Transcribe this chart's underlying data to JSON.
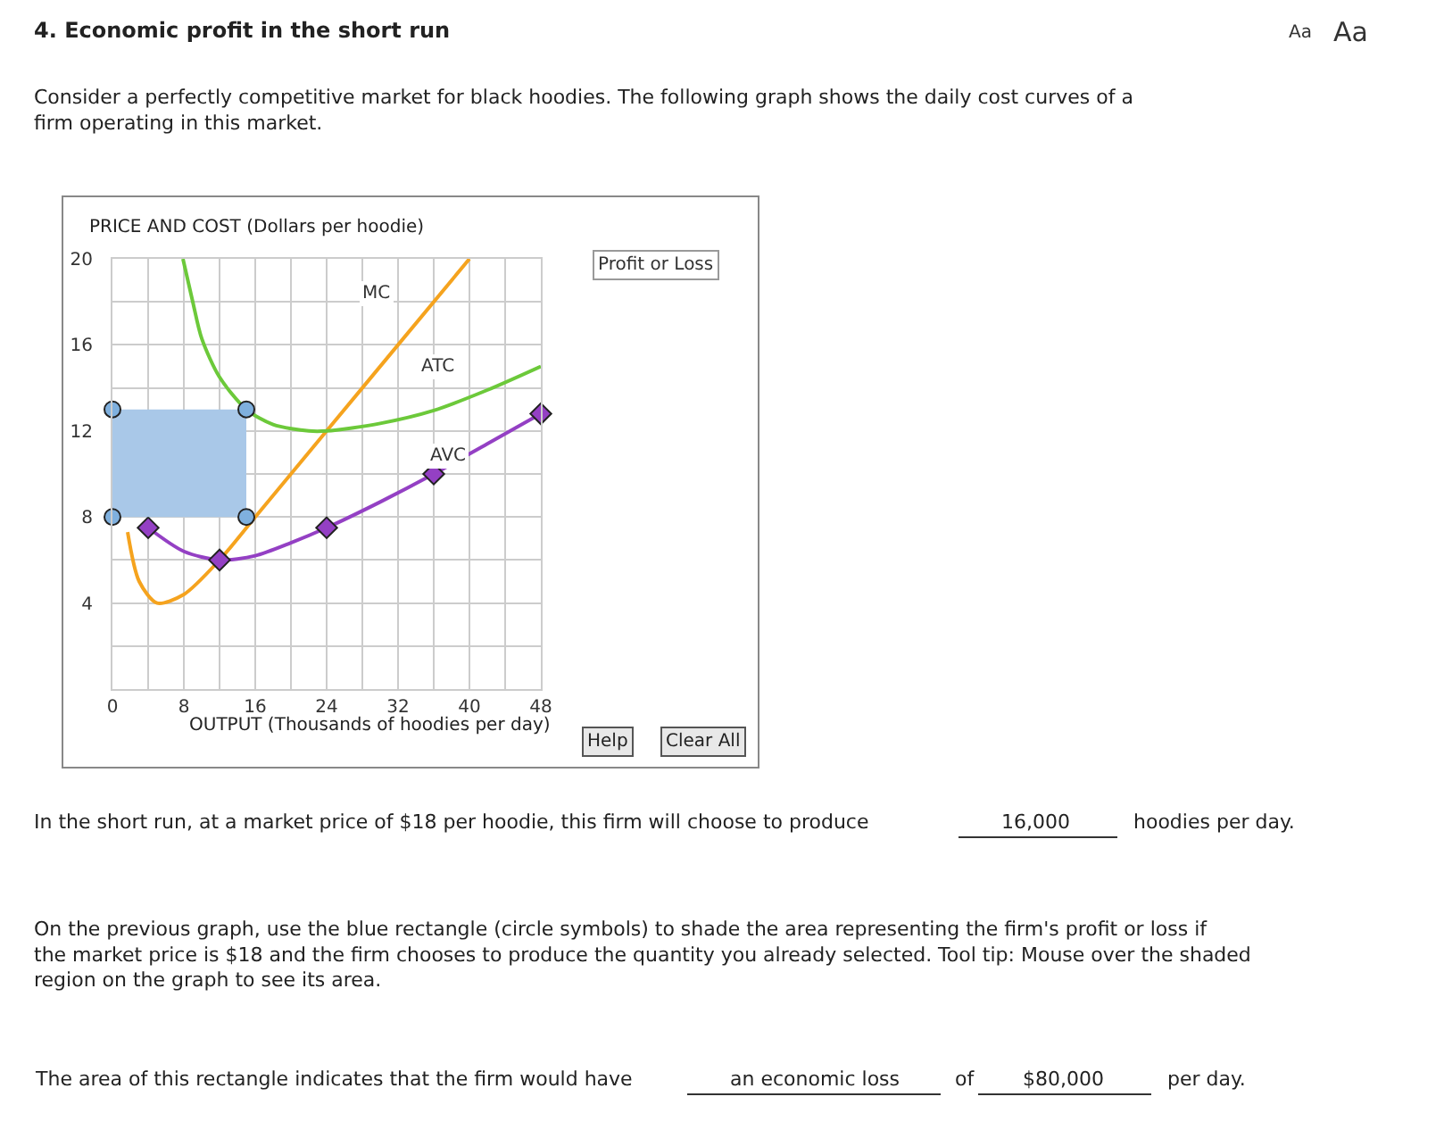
{
  "chart_data": {
    "type": "line",
    "xlabel": "OUTPUT (Thousands of hoodies per day)",
    "ylabel": "PRICE AND COST (Dollars per hoodie)",
    "xlim": [
      0,
      48
    ],
    "ylim": [
      0,
      20
    ],
    "xticks": [
      0,
      {
        "value": 4,
        "label": null
      },
      8,
      {
        "value": 12,
        "label": null
      },
      16,
      {
        "value": 20,
        "label": null
      },
      24,
      {
        "value": 28,
        "label": null
      },
      32,
      {
        "value": 36,
        "label": null
      },
      40,
      {
        "value": 44,
        "label": null
      },
      48
    ],
    "yticks": [
      {
        "value": 0,
        "label": null
      },
      {
        "value": 2,
        "label": null
      },
      4,
      {
        "value": 6,
        "label": null
      },
      8,
      {
        "value": 10,
        "label": null
      },
      12,
      {
        "value": 14,
        "label": null
      },
      16,
      {
        "value": 18,
        "label": null
      },
      20
    ],
    "grid": true,
    "legend": false,
    "series": [
      {
        "name": "MC",
        "color": "#f5a31e",
        "marker": "none",
        "x": [
          1.7,
          3,
          5,
          8,
          12,
          16,
          24,
          32,
          40
        ],
        "values": [
          7.3,
          5,
          4,
          4.4,
          6,
          8,
          12,
          16,
          20
        ]
      },
      {
        "name": "ATC",
        "color": "#6cc93a",
        "marker": "none",
        "x": [
          7.9,
          9,
          10,
          12,
          15,
          18,
          22,
          24,
          30,
          36,
          42,
          48
        ],
        "values": [
          20,
          18,
          16.3,
          14.5,
          13,
          12.3,
          12,
          12,
          12.35,
          12.95,
          13.9,
          15
        ]
      },
      {
        "name": "AVC",
        "color": "#9440c4",
        "marker": "none",
        "x": [
          4,
          8,
          12,
          16,
          20,
          24,
          30,
          36,
          42,
          48
        ],
        "values": [
          7.5,
          6.4,
          6,
          6.2,
          6.8,
          7.5,
          8.7,
          10,
          11.4,
          12.8
        ]
      },
      {
        "type": "scatter",
        "color": "#9440c4",
        "marker": "diamond",
        "x": [
          4,
          12,
          24,
          36,
          48
        ],
        "values": [
          7.5,
          6,
          7.5,
          10,
          12.8
        ]
      },
      {
        "type": "area",
        "color": "#a9c8e8",
        "marker": "none",
        "x": [
          0,
          15,
          15,
          0
        ],
        "values": [
          13,
          13,
          8,
          8
        ]
      },
      {
        "type": "scatter",
        "color": "#7fb0de",
        "marker": "circle",
        "x": [
          0,
          15,
          0,
          15
        ],
        "values": [
          13,
          13,
          8,
          8
        ]
      }
    ],
    "annotations": [
      "4. Economic profit in the short run",
      "Aa",
      "Aa",
      "Consider a perfectly competitive market for black hoodies. The following graph shows the daily cost curves of a firm operating in this market.",
      "Profit or Loss",
      "Help",
      "Clear All",
      "In the short run, at a market price of $18 per hoodie, this firm will choose to produce",
      "16,000",
      "hoodies per day.",
      "On the previous graph, use the blue rectangle (circle symbols) to shade the area representing the firm's profit or loss if the market price is $18 and the firm chooses to produce the quantity you already selected. Tool tip: Mouse over the shaded region on the graph to see its area.",
      "The area of this rectangle indicates that the firm would have",
      "an economic loss",
      "of",
      "$80,000",
      "per day."
    ]
  }
}
